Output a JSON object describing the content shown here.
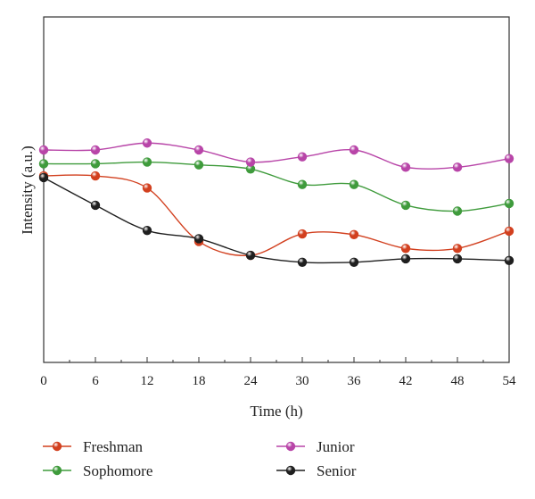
{
  "chart_data": {
    "type": "line",
    "title": "",
    "xlabel": "Time (h)",
    "ylabel": "Intensity (a.u.)",
    "x": [
      0,
      6,
      12,
      18,
      24,
      30,
      36,
      42,
      48,
      54
    ],
    "xlim": [
      0,
      54
    ],
    "ylim": [
      0,
      100
    ],
    "y_tick_labels": false,
    "grid": false,
    "legend_position": "bottom",
    "series": [
      {
        "name": "Freshman",
        "color": "#d2401f",
        "values": [
          54.0,
          54.0,
          50.5,
          35.0,
          31.0,
          37.2,
          37.0,
          33.0,
          33.0,
          38.0
        ]
      },
      {
        "name": "Sophomore",
        "color": "#3f9b3c",
        "values": [
          57.5,
          57.5,
          58.0,
          57.2,
          56.0,
          51.5,
          51.5,
          45.5,
          43.8,
          46.0
        ]
      },
      {
        "name": "Junior",
        "color": "#b845a8",
        "values": [
          61.5,
          61.5,
          63.5,
          61.5,
          58.0,
          59.5,
          61.5,
          56.5,
          56.5,
          59.0
        ]
      },
      {
        "name": "Senior",
        "color": "#1f1f1f",
        "values": [
          53.5,
          45.5,
          38.2,
          35.8,
          31.0,
          29.0,
          29.0,
          30.0,
          30.0,
          29.5
        ]
      }
    ]
  }
}
